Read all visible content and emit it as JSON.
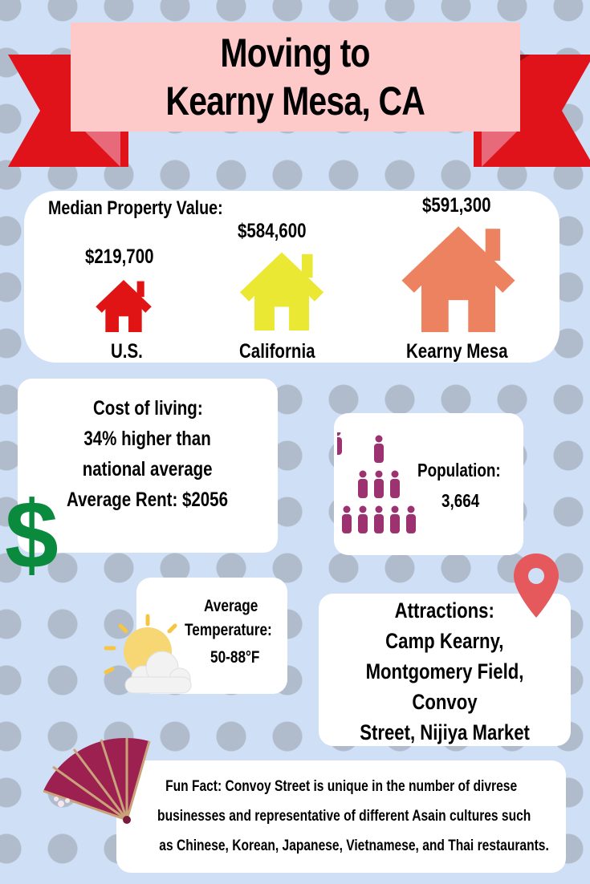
{
  "title": {
    "line1": "Moving to",
    "line2": "Kearny Mesa, CA"
  },
  "property": {
    "heading": "Median Property Value:",
    "items": [
      {
        "place": "U.S.",
        "value": "$219,700",
        "color": "#e01414"
      },
      {
        "place": "California",
        "value": "$584,600",
        "color": "#ebe833"
      },
      {
        "place": "Kearny Mesa",
        "value": "$591,300",
        "color": "#ed8260"
      }
    ]
  },
  "cost": {
    "line1": "Cost of living:",
    "line2": "34% higher than",
    "line3": "national average",
    "line4": "Average Rent: $2056"
  },
  "population": {
    "label": "Population:",
    "value": "3,664"
  },
  "temperature": {
    "line1": "Average",
    "line2": "Temperature:",
    "line3": "50-88°F"
  },
  "attractions": {
    "heading": "Attractions:",
    "line1": "Camp Kearny,",
    "line2": "Montgomery Field, Convoy",
    "line3": "Street, Nijiya Market"
  },
  "fun_fact": {
    "line1": "Fun Fact: Convoy Street is unique in the number of divrese",
    "line2": "businesses and representative of different Asain cultures such",
    "line3": "as Chinese, Korean, Japanese, Vietnamese, and Thai restaurants."
  },
  "icons": {
    "dollar": "dollar-sign-icon",
    "people": "people-pyramid-icon",
    "pin": "map-pin-icon",
    "sun": "sun-cloud-icon",
    "fan": "fan-icon",
    "house": "house-icon"
  }
}
